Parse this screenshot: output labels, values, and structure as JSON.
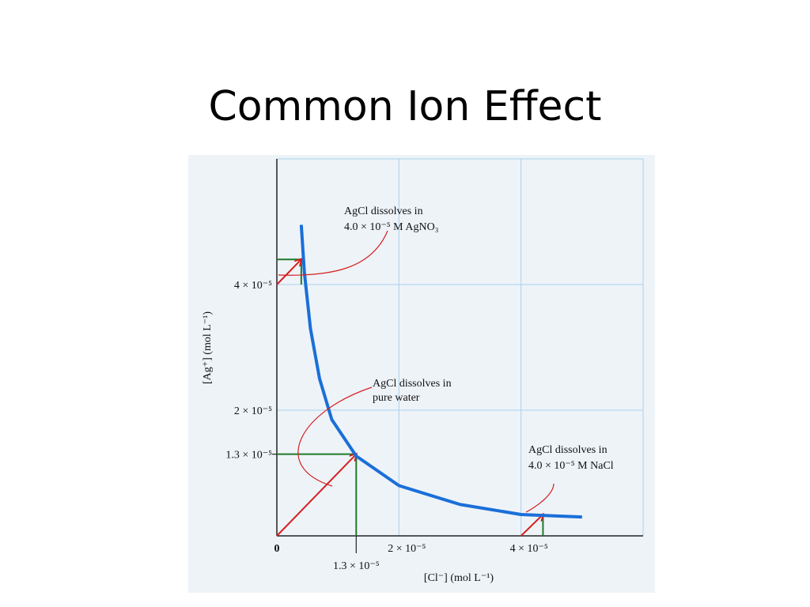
{
  "title": "Common Ion Effect",
  "chart_data": {
    "type": "line",
    "x": [
      4e-06,
      4.5e-06,
      5.5e-06,
      7e-06,
      9e-06,
      1.3e-05,
      2e-05,
      3e-05,
      4e-05,
      5e-05
    ],
    "series": [
      {
        "color": "#1a6fd8",
        "values": [
          4.95e-05,
          4.2e-05,
          3.3e-05,
          2.5e-05,
          1.85e-05,
          1.27e-05,
          8e-06,
          5e-06,
          3.4e-06,
          3e-06
        ]
      }
    ],
    "xlim": [
      0,
      6e-05
    ],
    "ylim": [
      0,
      6e-05
    ],
    "xticks": [
      0,
      {
        "value": 2e-05,
        "label": "2 × 10⁻⁵"
      },
      {
        "value": 4e-05,
        "label": "4 × 10⁻⁵"
      },
      {
        "value": 1.3e-05,
        "label": "1.3 × 10⁻⁵"
      }
    ],
    "yticks": [
      {
        "value": 4e-05,
        "label": "4 × 10⁻⁵"
      },
      {
        "value": 2e-05,
        "label": "2 × 10⁻⁵"
      },
      {
        "value": 1.3e-05,
        "label": "1.3 × 10⁻⁵"
      }
    ],
    "grid": true,
    "xlabel": "[Cl⁻]  (mol L⁻¹)",
    "ylabel": "[Ag⁺]  (mol L⁻¹)",
    "arrows": [
      {
        "x0": 0,
        "y0": 4e-05,
        "x1": 4e-06,
        "y1": 4.4e-05
      },
      {
        "x0": 0,
        "y0": 0,
        "x1": 1.3e-05,
        "y1": 1.3e-05
      },
      {
        "x0": 4e-05,
        "y0": 0,
        "x1": 4.36e-05,
        "y1": 3.4e-06
      }
    ],
    "annotations": [
      [
        "AgCl dissolves in",
        "4.0 × 10⁻⁵ M AgNO₃"
      ],
      [
        "AgCl dissolves in",
        "pure water"
      ],
      [
        "AgCl dissolves in",
        "4.0 × 10⁻⁵ M NaCl"
      ]
    ]
  }
}
